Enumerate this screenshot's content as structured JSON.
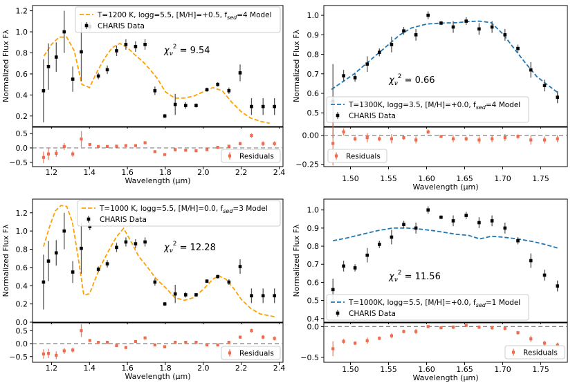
{
  "colors": {
    "data_points": "#000000",
    "residuals": "#f06a4c",
    "zero_line": "#808080",
    "model_orange": "#ffa000",
    "model_blue": "#1f77b4"
  },
  "chart_data": [
    {
      "id": "top_left",
      "type": "scatter",
      "subtype": "spectrum-with-residuals",
      "xlabel": "Wavelength (μm)",
      "ylabel": "Normalized Flux Fλ",
      "xlim": [
        1.1,
        2.42
      ],
      "xticks": [
        1.2,
        1.4,
        1.6,
        1.8,
        2.0,
        2.2,
        2.4
      ],
      "xtick_labels": [
        "1.2",
        "1.4",
        "1.6",
        "1.8",
        "2.0",
        "2.2",
        "2.4"
      ],
      "main": {
        "ylim": [
          0.1,
          1.25
        ],
        "yticks": [
          0.2,
          0.4,
          0.6,
          0.8,
          1.0,
          1.2
        ],
        "ytick_labels": [
          "0.2",
          "0.4",
          "0.6",
          "0.8",
          "1.0",
          "1.2"
        ]
      },
      "resid": {
        "ylim": [
          -0.65,
          0.72
        ],
        "yticks": [
          -0.5,
          0.0,
          0.5
        ],
        "ytick_labels": [
          "−0.5",
          "0.0",
          "0.5"
        ]
      },
      "legend": {
        "position": "top",
        "model_label": "T=1200 K, logg=5.5, [M/H]=+0.5, f_sed=4 Model",
        "model_label_pre": "T=1200 K, logg=5.5, [M/H]=+0.5, f",
        "model_label_sub": "sed",
        "model_label_post": "=4 Model",
        "data_label": "CHARIS Data",
        "resid_label": "Residuals",
        "resid_position": "bottom-right"
      },
      "chi2_label": "9.54",
      "model": {
        "style": "dashed",
        "color": "orange",
        "x": [
          1.16,
          1.2,
          1.24,
          1.28,
          1.32,
          1.36,
          1.4,
          1.44,
          1.48,
          1.52,
          1.56,
          1.6,
          1.64,
          1.68,
          1.72,
          1.76,
          1.8,
          1.85,
          1.9,
          1.95,
          2.0,
          2.05,
          2.1,
          2.15,
          2.2,
          2.25,
          2.3,
          2.35
        ],
        "y": [
          0.77,
          0.88,
          0.95,
          0.95,
          0.82,
          0.5,
          0.47,
          0.62,
          0.75,
          0.85,
          0.89,
          0.85,
          0.78,
          0.72,
          0.64,
          0.55,
          0.43,
          0.37,
          0.37,
          0.39,
          0.43,
          0.47,
          0.44,
          0.33,
          0.24,
          0.18,
          0.15,
          0.13
        ]
      },
      "data": {
        "x": [
          1.158,
          1.184,
          1.225,
          1.267,
          1.312,
          1.357,
          1.402,
          1.447,
          1.494,
          1.543,
          1.592,
          1.643,
          1.693,
          1.745,
          1.797,
          1.852,
          1.907,
          1.962,
          2.019,
          2.076,
          2.135,
          2.194,
          2.254,
          2.315,
          2.375
        ],
        "y": [
          0.44,
          0.67,
          0.76,
          1.0,
          0.55,
          0.81,
          1.05,
          0.58,
          0.64,
          0.82,
          0.88,
          0.86,
          0.88,
          0.44,
          0.2,
          0.31,
          0.3,
          0.3,
          0.45,
          0.5,
          0.44,
          0.61,
          0.29,
          0.29,
          0.29
        ],
        "yerr": [
          0.3,
          0.22,
          0.14,
          0.2,
          0.12,
          0.28,
          0.04,
          0.03,
          0.04,
          0.05,
          0.05,
          0.05,
          0.05,
          0.04,
          0.02,
          0.1,
          0.03,
          0.02,
          0.02,
          0.02,
          0.03,
          0.08,
          0.08,
          0.08,
          0.08
        ]
      },
      "residuals": {
        "x": [
          1.158,
          1.184,
          1.225,
          1.267,
          1.312,
          1.357,
          1.402,
          1.447,
          1.494,
          1.543,
          1.592,
          1.643,
          1.693,
          1.745,
          1.797,
          1.852,
          1.907,
          1.962,
          2.019,
          2.076,
          2.135,
          2.194,
          2.254,
          2.315,
          2.375
        ],
        "y": [
          -0.33,
          -0.21,
          -0.19,
          0.05,
          -0.21,
          0.31,
          0.12,
          0.05,
          0.05,
          0.06,
          0.08,
          0.08,
          0.18,
          -0.13,
          -0.23,
          -0.06,
          -0.08,
          -0.1,
          -0.06,
          0.02,
          0.06,
          0.15,
          0.43,
          0.15,
          0.15
        ],
        "yerr": [
          0.2,
          0.2,
          0.12,
          0.12,
          0.1,
          0.28,
          0.04,
          0.03,
          0.03,
          0.04,
          0.04,
          0.04,
          0.05,
          0.04,
          0.03,
          0.06,
          0.04,
          0.03,
          0.02,
          0.02,
          0.03,
          0.06,
          0.08,
          0.08,
          0.08
        ]
      }
    },
    {
      "id": "top_right",
      "type": "scatter",
      "subtype": "spectrum-with-residuals",
      "xlabel": "Wavelength (μm)",
      "ylabel": "Normalized Flux Fλ",
      "xlim": [
        1.465,
        1.785
      ],
      "xticks": [
        1.5,
        1.55,
        1.6,
        1.65,
        1.7,
        1.75
      ],
      "xtick_labels": [
        "1.50",
        "1.55",
        "1.60",
        "1.65",
        "1.70",
        "1.75"
      ],
      "main": {
        "ylim": [
          0.43,
          1.05
        ],
        "yticks": [
          0.5,
          0.6,
          0.7,
          0.8,
          0.9,
          1.0
        ],
        "ytick_labels": [
          "0.5",
          "0.6",
          "0.7",
          "0.8",
          "0.9",
          "1.0"
        ]
      },
      "resid": {
        "ylim": [
          -0.27,
          0.07
        ],
        "yticks": [
          -0.25,
          0.0
        ],
        "ytick_labels": [
          "−0.25",
          "0.00"
        ]
      },
      "legend": {
        "position": "bottom-left",
        "model_label": "T=1300K, logg=3.5, [M/H]=+0.0, f_sed=4 Model",
        "model_label_pre": "T=1300K, logg=3.5, [M/H]=+0.0, f",
        "model_label_sub": "sed",
        "model_label_post": "=4 Model",
        "data_label": "CHARIS Data",
        "resid_label": "Residuals",
        "resid_position": "bottom-left"
      },
      "chi2_label": "0.66",
      "model": {
        "style": "dashed",
        "color": "blue",
        "x": [
          1.475,
          1.49,
          1.505,
          1.52,
          1.535,
          1.55,
          1.565,
          1.58,
          1.6,
          1.62,
          1.64,
          1.655,
          1.67,
          1.685,
          1.7,
          1.715,
          1.73,
          1.745,
          1.76,
          1.772
        ],
        "y": [
          0.62,
          0.66,
          0.7,
          0.75,
          0.8,
          0.85,
          0.9,
          0.935,
          0.955,
          0.96,
          0.962,
          0.968,
          0.97,
          0.962,
          0.905,
          0.83,
          0.755,
          0.685,
          0.64,
          0.605
        ]
      },
      "data": {
        "x": [
          1.477,
          1.491,
          1.506,
          1.522,
          1.538,
          1.554,
          1.57,
          1.586,
          1.602,
          1.619,
          1.635,
          1.652,
          1.669,
          1.686,
          1.703,
          1.72,
          1.737,
          1.755,
          1.772
        ],
        "y": [
          0.56,
          0.69,
          0.68,
          0.75,
          0.81,
          0.85,
          0.92,
          0.9,
          1.0,
          0.96,
          0.94,
          0.97,
          0.93,
          0.94,
          0.9,
          0.83,
          0.72,
          0.64,
          0.58
        ],
        "yerr": [
          0.19,
          0.03,
          0.02,
          0.04,
          0.02,
          0.04,
          0.02,
          0.03,
          0.02,
          0.01,
          0.03,
          0.02,
          0.03,
          0.03,
          0.03,
          0.02,
          0.04,
          0.03,
          0.03
        ]
      },
      "residuals": {
        "x": [
          1.477,
          1.491,
          1.506,
          1.522,
          1.538,
          1.554,
          1.57,
          1.586,
          1.602,
          1.619,
          1.635,
          1.652,
          1.669,
          1.686,
          1.703,
          1.72,
          1.737,
          1.755,
          1.772
        ],
        "y": [
          -0.07,
          0.03,
          -0.03,
          -0.02,
          -0.03,
          -0.03,
          -0.02,
          -0.04,
          0.03,
          -0.01,
          -0.03,
          -0.03,
          -0.04,
          -0.03,
          -0.02,
          -0.01,
          -0.04,
          -0.04,
          -0.03
        ],
        "yerr": [
          0.19,
          0.03,
          0.02,
          0.04,
          0.02,
          0.04,
          0.02,
          0.03,
          0.02,
          0.01,
          0.03,
          0.02,
          0.03,
          0.03,
          0.03,
          0.02,
          0.04,
          0.03,
          0.03
        ]
      }
    },
    {
      "id": "bottom_left",
      "type": "scatter",
      "subtype": "spectrum-with-residuals",
      "xlabel": "Wavelength (μm)",
      "ylabel": "Normalized Flux Fλ",
      "xlim": [
        1.1,
        2.42
      ],
      "xticks": [
        1.2,
        1.4,
        1.6,
        1.8,
        2.0,
        2.2,
        2.4
      ],
      "xtick_labels": [
        "1.2",
        "1.4",
        "1.6",
        "1.8",
        "2.0",
        "2.2",
        "2.4"
      ],
      "main": {
        "ylim": [
          0.0,
          1.35
        ],
        "yticks": [
          0.0,
          0.2,
          0.4,
          0.6,
          0.8,
          1.0,
          1.2
        ],
        "ytick_labels": [
          "0.0",
          "0.2",
          "0.4",
          "0.6",
          "0.8",
          "1.0",
          "1.2"
        ]
      },
      "resid": {
        "ylim": [
          -0.72,
          0.8
        ],
        "yticks": [
          -0.5,
          0.0,
          0.5
        ],
        "ytick_labels": [
          "−0.5",
          "0.0",
          "0.5"
        ]
      },
      "legend": {
        "position": "top-right",
        "model_label": "T=1000 K, logg=5.5, [M/H]=0.0, f_sed=3 Model",
        "model_label_pre": "T=1000 K, logg=5.5, [M/H]=0.0, f",
        "model_label_sub": "sed",
        "model_label_post": "=3 Model",
        "data_label": "CHARIS Data",
        "resid_label": "Residuals",
        "resid_position": "bottom-right"
      },
      "chi2_label": "12.28",
      "model": {
        "style": "dashed",
        "color": "orange",
        "x": [
          1.158,
          1.19,
          1.22,
          1.25,
          1.28,
          1.31,
          1.34,
          1.37,
          1.4,
          1.43,
          1.46,
          1.5,
          1.54,
          1.58,
          1.62,
          1.66,
          1.7,
          1.75,
          1.8,
          1.85,
          1.9,
          1.95,
          2.0,
          2.05,
          2.08,
          2.12,
          2.16,
          2.2,
          2.25,
          2.3,
          2.35,
          2.375
        ],
        "y": [
          0.83,
          1.05,
          1.22,
          1.28,
          1.27,
          1.1,
          0.72,
          0.3,
          0.31,
          0.47,
          0.62,
          0.78,
          0.93,
          1.03,
          0.88,
          0.72,
          0.62,
          0.48,
          0.38,
          0.27,
          0.24,
          0.27,
          0.36,
          0.47,
          0.51,
          0.47,
          0.37,
          0.25,
          0.15,
          0.09,
          0.07,
          0.06
        ]
      },
      "data": {
        "x": [
          1.158,
          1.184,
          1.225,
          1.267,
          1.312,
          1.357,
          1.402,
          1.447,
          1.494,
          1.543,
          1.592,
          1.643,
          1.693,
          1.745,
          1.797,
          1.852,
          1.907,
          1.962,
          2.019,
          2.076,
          2.135,
          2.194,
          2.254,
          2.315,
          2.375
        ],
        "y": [
          0.44,
          0.67,
          0.76,
          1.0,
          0.55,
          0.81,
          1.05,
          0.58,
          0.64,
          0.82,
          0.88,
          0.86,
          0.88,
          0.44,
          0.2,
          0.31,
          0.3,
          0.3,
          0.45,
          0.5,
          0.44,
          0.61,
          0.29,
          0.29,
          0.29
        ],
        "yerr": [
          0.3,
          0.22,
          0.14,
          0.2,
          0.12,
          0.28,
          0.04,
          0.03,
          0.04,
          0.05,
          0.05,
          0.05,
          0.05,
          0.04,
          0.02,
          0.1,
          0.03,
          0.02,
          0.02,
          0.02,
          0.03,
          0.08,
          0.08,
          0.08,
          0.08
        ]
      },
      "residuals": {
        "x": [
          1.158,
          1.184,
          1.225,
          1.267,
          1.312,
          1.357,
          1.402,
          1.447,
          1.494,
          1.543,
          1.592,
          1.643,
          1.693,
          1.745,
          1.797,
          1.852,
          1.907,
          1.962,
          2.019,
          2.076,
          2.135,
          2.194,
          2.254,
          2.315,
          2.375
        ],
        "y": [
          -0.4,
          -0.38,
          -0.45,
          -0.28,
          -0.25,
          0.5,
          0.12,
          0.05,
          0.05,
          -0.08,
          -0.15,
          0.08,
          0.22,
          -0.05,
          -0.12,
          0.05,
          0.05,
          0.05,
          -0.05,
          -0.05,
          0.05,
          0.25,
          0.5,
          0.25,
          0.2
        ],
        "yerr": [
          0.18,
          0.18,
          0.15,
          0.12,
          0.1,
          0.25,
          0.04,
          0.03,
          0.03,
          0.04,
          0.04,
          0.04,
          0.05,
          0.04,
          0.03,
          0.06,
          0.04,
          0.03,
          0.02,
          0.02,
          0.03,
          0.06,
          0.08,
          0.08,
          0.08
        ]
      }
    },
    {
      "id": "bottom_right",
      "type": "scatter",
      "subtype": "spectrum-with-residuals",
      "xlabel": "Wavelength (μm)",
      "ylabel": "Normalized Flux Fλ",
      "xlim": [
        1.465,
        1.785
      ],
      "xticks": [
        1.5,
        1.55,
        1.6,
        1.65,
        1.7,
        1.75
      ],
      "xtick_labels": [
        "1.50",
        "1.55",
        "1.60",
        "1.65",
        "1.70",
        "1.75"
      ],
      "main": {
        "ylim": [
          0.38,
          1.06
        ],
        "yticks": [
          0.4,
          0.5,
          0.6,
          0.7,
          0.8,
          0.9,
          1.0
        ],
        "ytick_labels": [
          "0.4",
          "0.5",
          "0.6",
          "0.7",
          "0.8",
          "0.9",
          "1.0"
        ]
      },
      "resid": {
        "ylim": [
          -0.58,
          0.06
        ],
        "yticks": [
          -0.5,
          0.0
        ],
        "ytick_labels": [
          "−0.5",
          "0.0"
        ]
      },
      "legend": {
        "position": "bottom-left",
        "model_label": "T=1000K, logg=5.5, [M/H]=+0.0, f_sed=1 Model",
        "model_label_pre": "T=1000K, logg=5.5, [M/H]=+0.0, f",
        "model_label_sub": "sed",
        "model_label_post": "=1 Model",
        "data_label": "CHARIS Data",
        "resid_label": "Residuals",
        "resid_position": "bottom-right"
      },
      "chi2_label": "11.56",
      "model": {
        "style": "dashed",
        "color": "blue",
        "x": [
          1.477,
          1.495,
          1.515,
          1.535,
          1.555,
          1.575,
          1.59,
          1.61,
          1.625,
          1.64,
          1.655,
          1.67,
          1.685,
          1.7,
          1.72,
          1.74,
          1.755,
          1.772
        ],
        "y": [
          0.83,
          0.845,
          0.865,
          0.885,
          0.9,
          0.9,
          0.895,
          0.885,
          0.875,
          0.865,
          0.86,
          0.84,
          0.855,
          0.85,
          0.84,
          0.825,
          0.81,
          0.79
        ]
      },
      "data": {
        "x": [
          1.477,
          1.491,
          1.506,
          1.522,
          1.538,
          1.554,
          1.57,
          1.586,
          1.602,
          1.619,
          1.635,
          1.652,
          1.669,
          1.686,
          1.703,
          1.72,
          1.737,
          1.755,
          1.772
        ],
        "y": [
          0.56,
          0.69,
          0.68,
          0.75,
          0.81,
          0.85,
          0.92,
          0.9,
          1.0,
          0.96,
          0.94,
          0.97,
          0.93,
          0.94,
          0.9,
          0.83,
          0.72,
          0.64,
          0.58
        ],
        "yerr": [
          0.06,
          0.03,
          0.02,
          0.04,
          0.02,
          0.04,
          0.02,
          0.03,
          0.02,
          0.01,
          0.03,
          0.02,
          0.03,
          0.03,
          0.03,
          0.02,
          0.04,
          0.03,
          0.03
        ]
      },
      "residuals": {
        "x": [
          1.477,
          1.491,
          1.506,
          1.522,
          1.538,
          1.554,
          1.57,
          1.586,
          1.602,
          1.619,
          1.635,
          1.652,
          1.669,
          1.686,
          1.703,
          1.72,
          1.737,
          1.755,
          1.772
        ],
        "y": [
          -0.36,
          -0.24,
          -0.27,
          -0.23,
          -0.19,
          -0.15,
          -0.08,
          -0.08,
          0.0,
          -0.02,
          -0.01,
          0.02,
          -0.01,
          -0.02,
          -0.03,
          -0.1,
          -0.2,
          -0.27,
          -0.3
        ],
        "yerr": [
          0.12,
          0.04,
          0.03,
          0.05,
          0.03,
          0.04,
          0.03,
          0.04,
          0.02,
          0.02,
          0.03,
          0.02,
          0.03,
          0.03,
          0.03,
          0.03,
          0.05,
          0.04,
          0.04
        ]
      }
    }
  ]
}
